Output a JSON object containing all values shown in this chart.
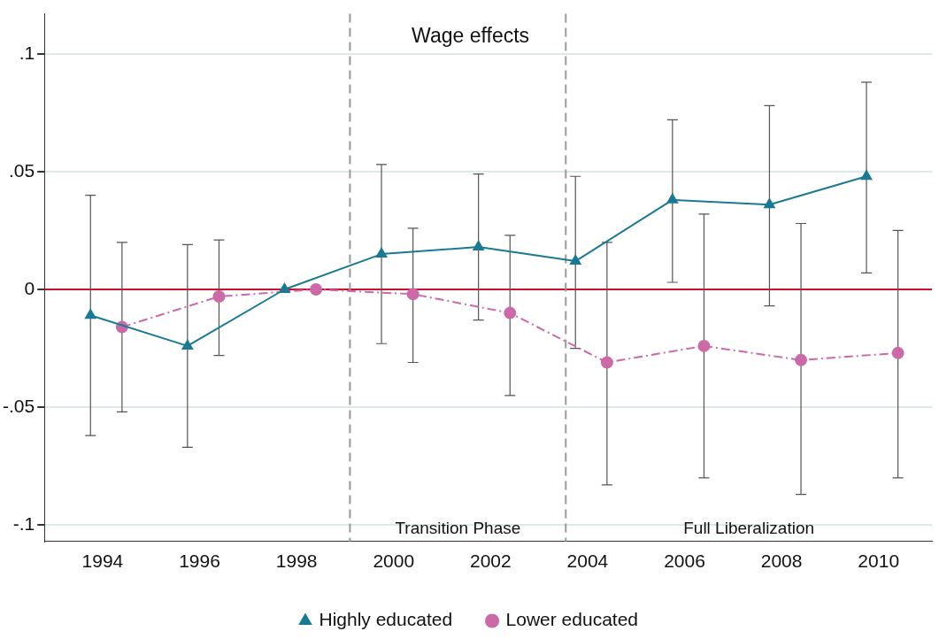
{
  "chart_data": {
    "type": "line",
    "title": "Wage effects",
    "xlim": [
      1992.8,
      2011.1
    ],
    "xticks": [
      1994,
      1996,
      1998,
      2000,
      2002,
      2004,
      2006,
      2008,
      2010
    ],
    "ylim": [
      -0.107,
      0.117
    ],
    "yticks": [
      {
        "value": -0.1,
        "label": "-.1"
      },
      {
        "value": -0.05,
        "label": "-.05"
      },
      {
        "value": 0,
        "label": "0"
      },
      {
        "value": 0.05,
        "label": ".05"
      },
      {
        "value": 0.1,
        "label": ".1"
      }
    ],
    "grid": "y",
    "legend": "bottom",
    "series": [
      {
        "name": "Highly educated",
        "color": "#1a7a93",
        "marker": "triangle",
        "line_style": "solid",
        "x": [
          1993.75,
          1995.75,
          1997.75,
          1999.75,
          2001.75,
          2003.75,
          2005.75,
          2007.75,
          2009.75
        ],
        "values": [
          -0.011,
          -0.024,
          0,
          0.015,
          0.018,
          0.012,
          0.038,
          0.036,
          0.048
        ],
        "errors": [
          [
            -0.062,
            0.04
          ],
          [
            -0.067,
            0.019
          ],
          null,
          [
            -0.023,
            0.053
          ],
          [
            -0.013,
            0.049
          ],
          [
            -0.025,
            0.048
          ],
          [
            0.003,
            0.072
          ],
          [
            -0.007,
            0.078
          ],
          [
            0.007,
            0.088
          ]
        ]
      },
      {
        "name": "Lower educated",
        "color": "#cc6aa8",
        "marker": "circle",
        "line_style": "dashed",
        "x": [
          1994.4,
          1996.4,
          1998.4,
          2000.4,
          2002.4,
          2004.4,
          2006.4,
          2008.4,
          2010.4
        ],
        "values": [
          -0.016,
          -0.003,
          0,
          -0.002,
          -0.01,
          -0.031,
          -0.024,
          -0.03,
          -0.027
        ],
        "errors": [
          [
            -0.052,
            0.02
          ],
          [
            -0.028,
            0.021
          ],
          null,
          [
            -0.031,
            0.026
          ],
          [
            -0.045,
            0.023
          ],
          [
            -0.083,
            0.02
          ],
          [
            -0.08,
            0.032
          ],
          [
            -0.087,
            0.028
          ],
          [
            -0.08,
            0.025
          ]
        ]
      }
    ],
    "ref_lines": [
      {
        "axis": "y",
        "value": 0,
        "color": "#c8102e",
        "line_style": "solid"
      },
      {
        "axis": "x",
        "value": 1999.1,
        "color": "#999999",
        "line_style": "dashed"
      },
      {
        "axis": "x",
        "value": 2003.55,
        "color": "#999999",
        "line_style": "dashed"
      }
    ],
    "annotations": [
      "Transition Phase",
      "Full Liberalization"
    ]
  }
}
